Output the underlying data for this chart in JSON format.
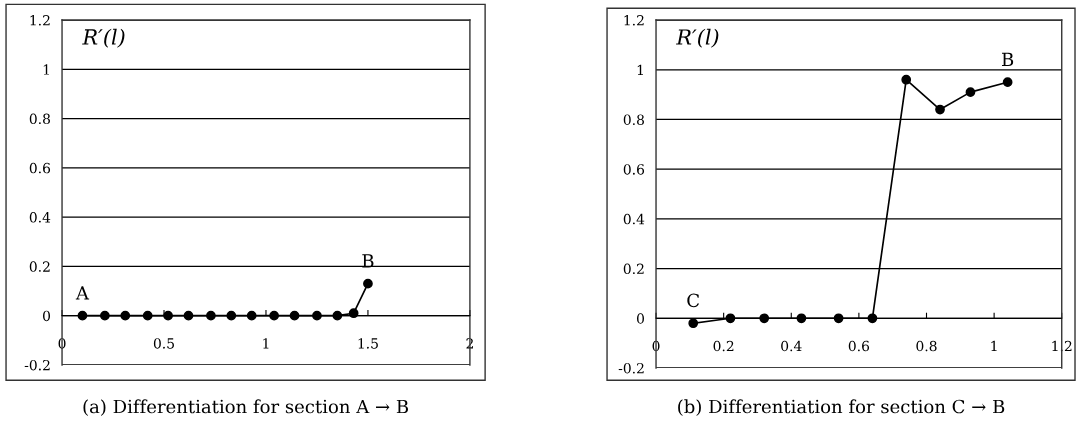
{
  "chart_data": [
    {
      "type": "line",
      "title": "(a) Differentiation for section A → B",
      "ylabel": "R′(l)",
      "x": [
        0.1,
        0.21,
        0.31,
        0.42,
        0.52,
        0.62,
        0.73,
        0.83,
        0.93,
        1.04,
        1.14,
        1.25,
        1.35,
        1.43,
        1.5
      ],
      "series": [
        {
          "color": "#000000",
          "values": [
            0,
            0,
            0,
            0,
            0,
            0,
            0,
            0,
            0,
            0,
            0,
            0,
            0,
            0.01,
            0.13
          ]
        }
      ],
      "xlim": [
        0,
        2
      ],
      "xticks": [
        0,
        0.5,
        1,
        1.5,
        2
      ],
      "ylim": [
        -0.2,
        1.2
      ],
      "yticks": [
        -0.2,
        0,
        0.2,
        0.4,
        0.6,
        0.8,
        1,
        1.2
      ],
      "grid": "y",
      "marker": "circle",
      "line_style": "solid",
      "annotations": [
        {
          "text": "A",
          "x": 0.1,
          "y": 0
        },
        {
          "text": "B",
          "x": 1.5,
          "y": 0.13
        }
      ]
    },
    {
      "type": "line",
      "title": "(b) Differentiation for section C → B",
      "ylabel": "R′(l)",
      "x": [
        0.11,
        0.22,
        0.32,
        0.43,
        0.54,
        0.64,
        0.74,
        0.84,
        0.93,
        1.04
      ],
      "series": [
        {
          "color": "#000000",
          "values": [
            -0.02,
            0,
            0,
            0,
            0,
            0,
            0.96,
            0.84,
            0.91,
            0.95
          ]
        }
      ],
      "xlim": [
        0,
        1.2
      ],
      "xticks": [
        0,
        0.2,
        0.4,
        0.6,
        0.8,
        1,
        1.2
      ],
      "ylim": [
        -0.2,
        1.2
      ],
      "yticks": [
        -0.2,
        0,
        0.2,
        0.4,
        0.6,
        0.8,
        1,
        1.2
      ],
      "grid": "y",
      "marker": "circle",
      "line_style": "solid",
      "annotations": [
        {
          "text": "C",
          "x": 0.11,
          "y": -0.02
        },
        {
          "text": "B",
          "x": 1.04,
          "y": 0.95
        }
      ]
    }
  ]
}
